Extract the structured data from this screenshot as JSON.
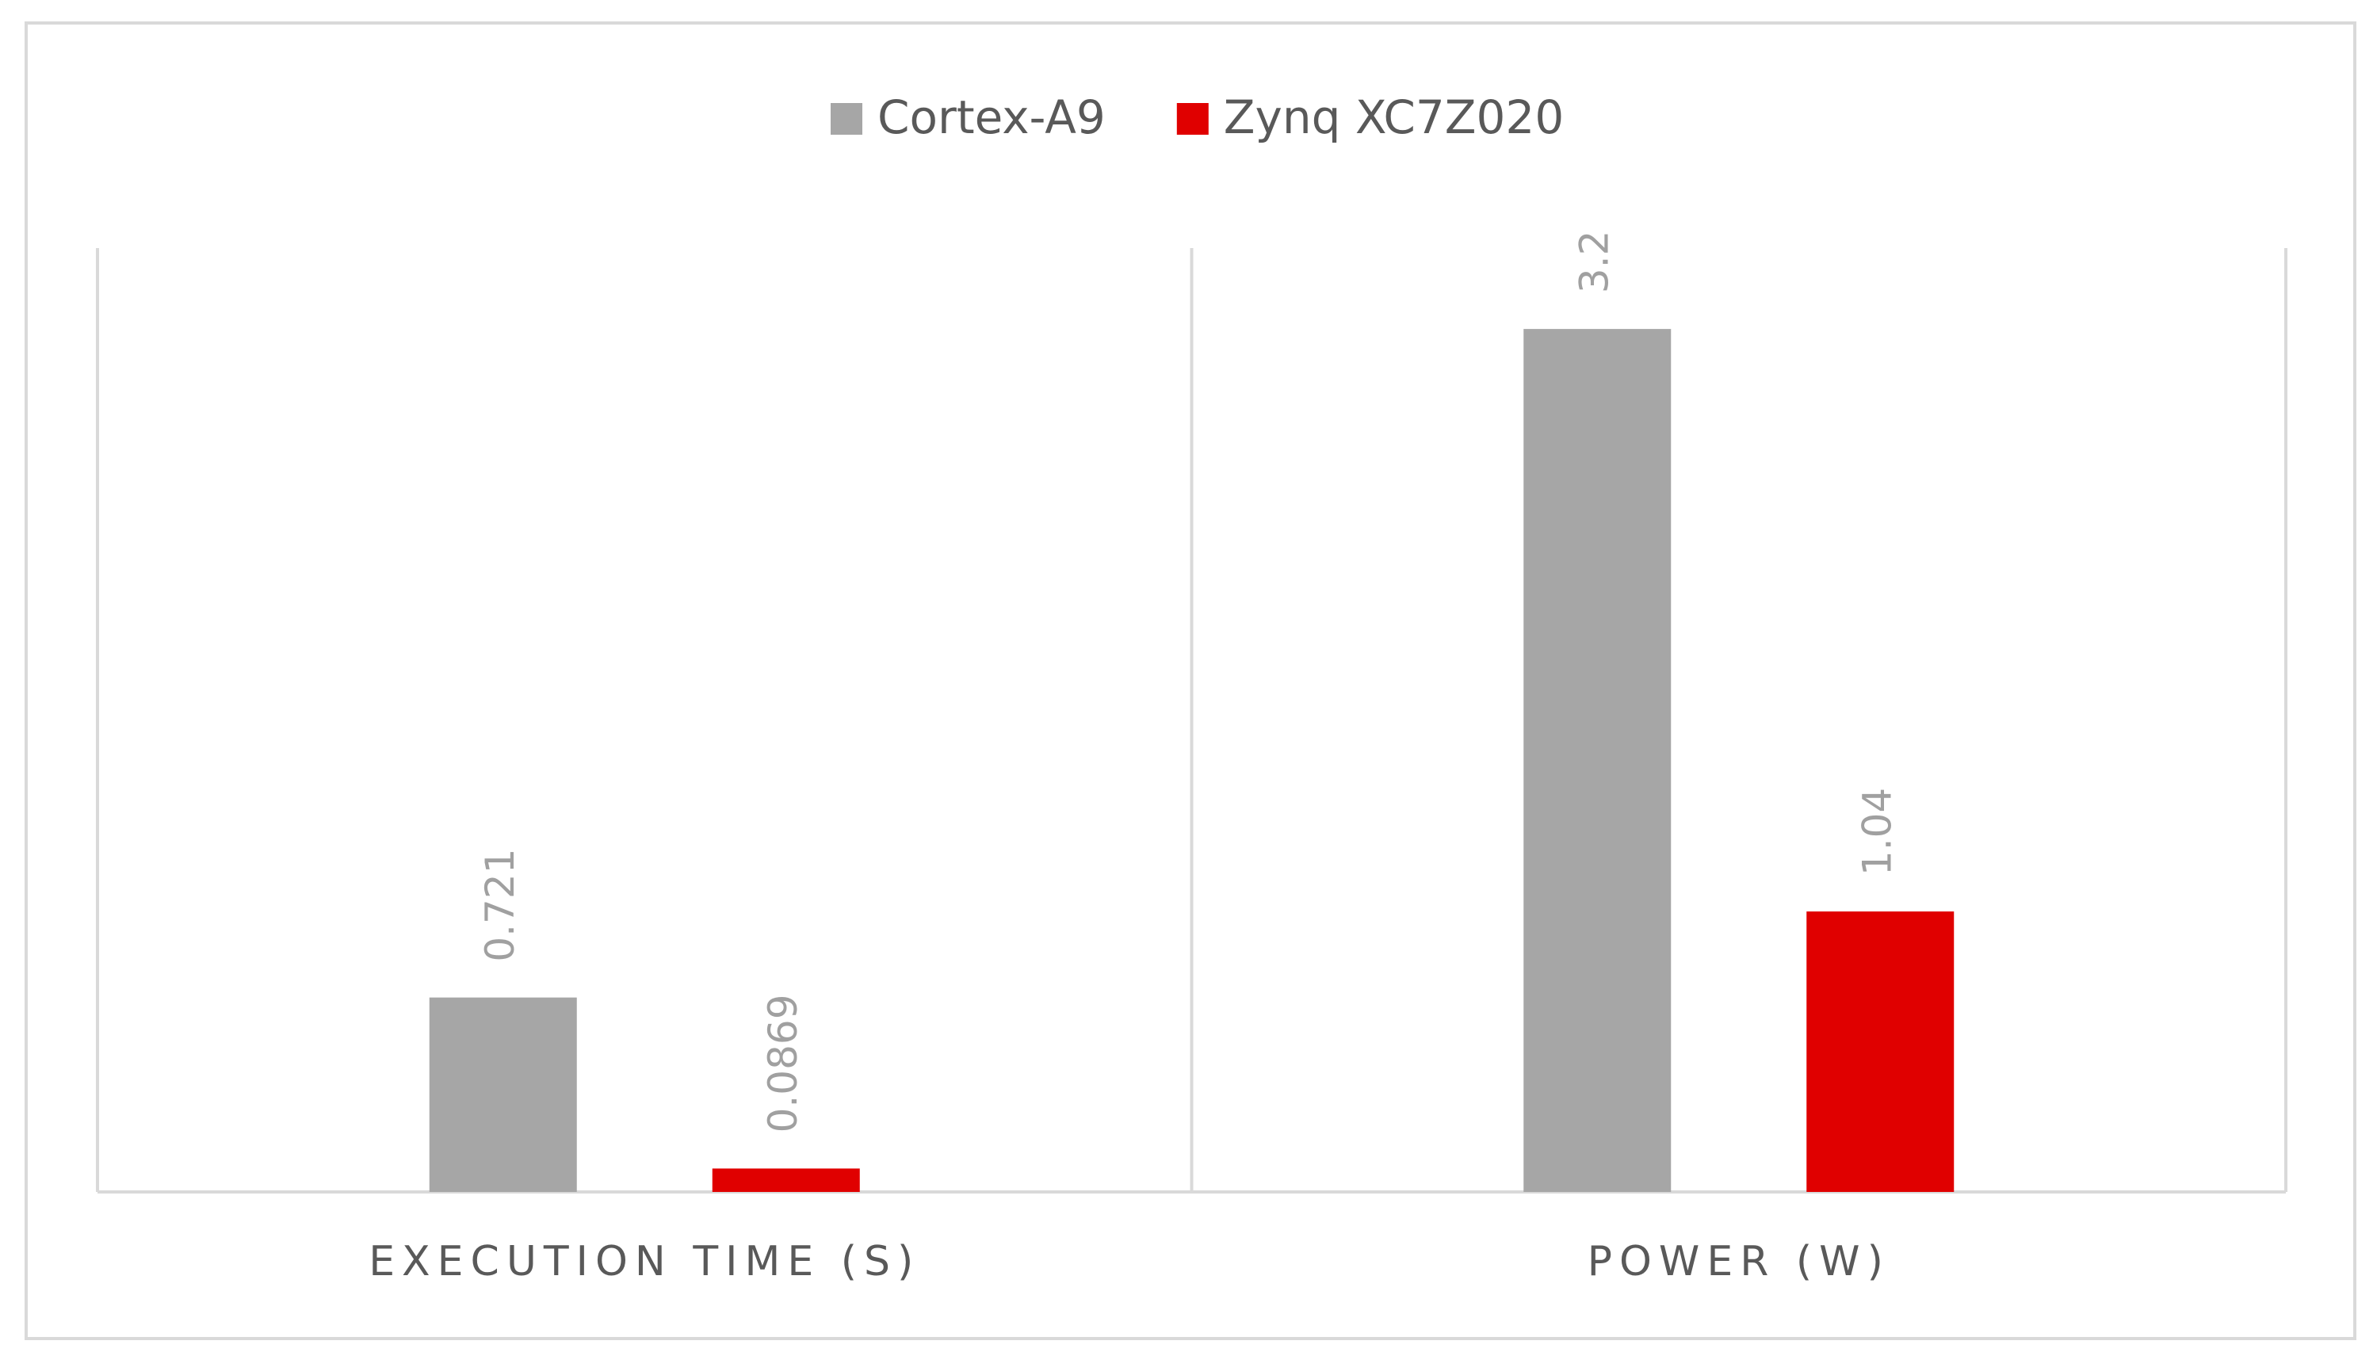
{
  "chart_data": {
    "type": "bar",
    "categories": [
      "EXECUTION TIME (S)",
      "POWER (W)"
    ],
    "series": [
      {
        "name": "Cortex-A9",
        "color": "#a6a6a6",
        "values": [
          0.721,
          3.2
        ]
      },
      {
        "name": "Zynq XC7Z020",
        "color": "#e00000",
        "values": [
          0.0869,
          1.04
        ]
      }
    ],
    "ylim": [
      0,
      3.5
    ],
    "legend": "top"
  }
}
